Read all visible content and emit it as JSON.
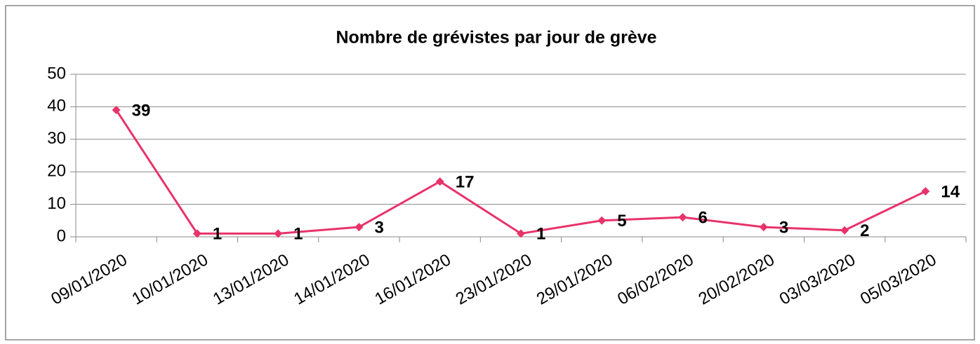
{
  "chart_data": {
    "type": "line",
    "title": "Nombre de grévistes par jour de grève",
    "categories": [
      "09/01/2020",
      "10/01/2020",
      "13/01/2020",
      "14/01/2020",
      "16/01/2020",
      "23/01/2020",
      "29/01/2020",
      "06/02/2020",
      "20/02/2020",
      "03/03/2020",
      "05/03/2020"
    ],
    "values": [
      39,
      1,
      1,
      3,
      17,
      1,
      5,
      6,
      3,
      2,
      14
    ],
    "color": "#e8336a",
    "ylim": [
      0,
      50
    ],
    "yticks": [
      0,
      10,
      20,
      30,
      40,
      50
    ],
    "grid": true
  }
}
